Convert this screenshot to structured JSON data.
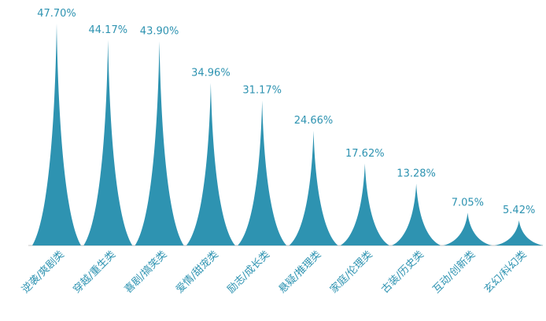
{
  "chart_data": {
    "type": "bar",
    "style": "pictorial-spike",
    "categories": [
      "逆袭/爽剧类",
      "穿越/重生类",
      "喜剧/搞笑类",
      "爱情/甜宠类",
      "励志/成长类",
      "悬疑/推理类",
      "家庭/伦理类",
      "古装/历史类",
      "互动/创新类",
      "玄幻/科幻类"
    ],
    "values": [
      47.7,
      44.17,
      43.9,
      34.96,
      31.17,
      24.66,
      17.62,
      13.28,
      7.05,
      5.42
    ],
    "value_labels": [
      "47.70%",
      "44.17%",
      "43.90%",
      "34.96%",
      "31.17%",
      "24.66%",
      "17.62%",
      "13.28%",
      "7.05%",
      "5.42%"
    ],
    "unit": "%",
    "ylim": [
      0,
      50
    ],
    "grid": false,
    "legend": "none",
    "bar_color": "#2e93b1"
  }
}
